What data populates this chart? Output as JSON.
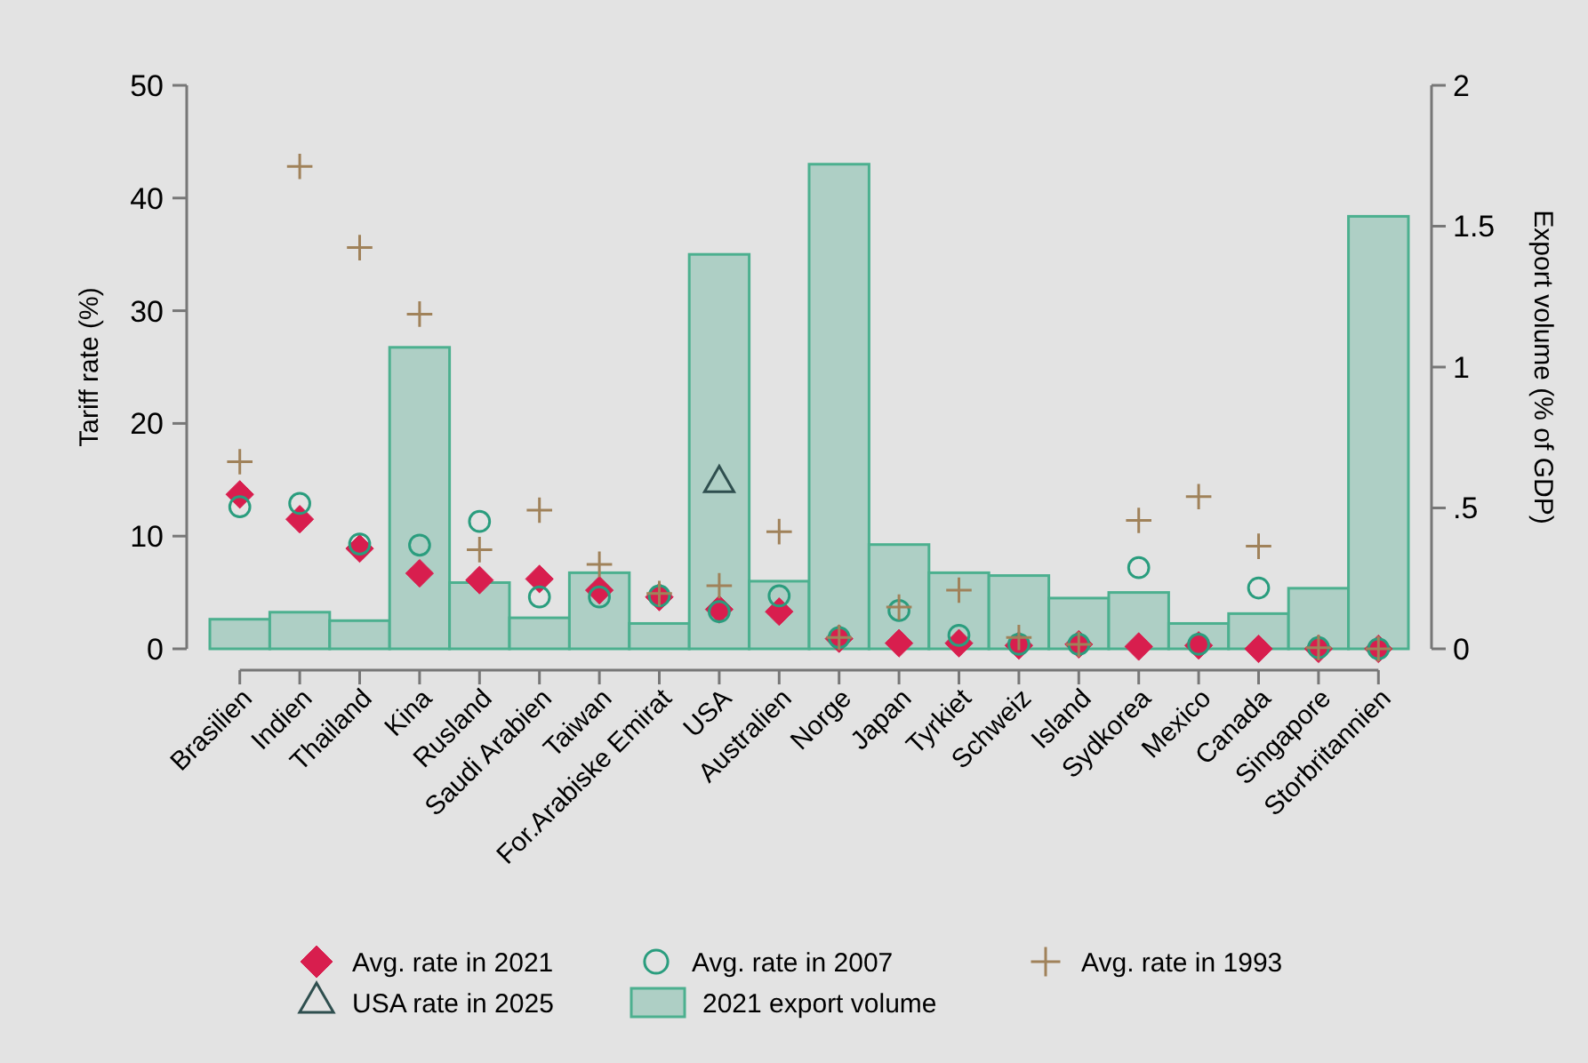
{
  "chart_data": {
    "type": "scatter",
    "categories": [
      "Brasilien",
      "Indien",
      "Thailand",
      "Kina",
      "Rusland",
      "Saudi Arabien",
      "Taiwan",
      "For.Arabiske Emirat",
      "USA",
      "Australien",
      "Norge",
      "Japan",
      "Tyrkiet",
      "Schweiz",
      "Island",
      "Sydkorea",
      "Mexico",
      "Canada",
      "Singapore",
      "Storbritannien"
    ],
    "ylabel": "Tariff rate (%)",
    "y2label": "Export volume (% of GDP)",
    "ylim": [
      0,
      50
    ],
    "yticks": [
      0,
      10,
      20,
      30,
      40,
      50
    ],
    "y2lim": [
      0,
      2
    ],
    "y2ticks": [
      0,
      {
        "value": 0.5,
        "label": ".5"
      },
      1,
      1.5,
      2
    ],
    "grid": false,
    "legend": "bottom",
    "series": [
      {
        "name": "Avg. rate in 2021",
        "marker": "diamond",
        "color": "#d81e4e",
        "values": [
          13.7,
          11.5,
          8.9,
          6.7,
          6.1,
          6.2,
          5.2,
          4.6,
          3.5,
          3.3,
          0.9,
          0.5,
          0.5,
          0.3,
          0.4,
          0.2,
          0.3,
          0,
          0,
          0
        ]
      },
      {
        "name": "Avg. rate in 2007",
        "marker": "circle",
        "color": "#2a9d7e",
        "values": [
          12.6,
          12.9,
          9.3,
          9.2,
          11.3,
          4.6,
          4.6,
          4.7,
          3.3,
          4.7,
          1.0,
          3.4,
          1.2,
          0.4,
          0.4,
          7.2,
          0.4,
          5.4,
          0.1,
          0
        ]
      },
      {
        "name": "Avg. rate in 1993",
        "marker": "cross",
        "color": "#a0825a",
        "values": [
          16.6,
          42.8,
          35.6,
          29.7,
          8.8,
          12.3,
          7.5,
          4.9,
          5.6,
          10.4,
          1.0,
          3.7,
          5.2,
          1.0,
          0.4,
          11.4,
          13.5,
          9.1,
          0.1,
          0
        ]
      },
      {
        "name": "USA rate in 2025",
        "marker": "triangle",
        "color": "#2f4f4f",
        "values": [
          null,
          null,
          null,
          null,
          null,
          null,
          null,
          null,
          14.7,
          null,
          null,
          null,
          null,
          null,
          null,
          null,
          null,
          null,
          null,
          null
        ]
      },
      {
        "name": "2021 export volume",
        "type": "bar",
        "axis": "y2",
        "color": "#aecfc5",
        "values": [
          0.105,
          0.13,
          0.1,
          1.07,
          0.235,
          0.11,
          0.27,
          0.09,
          1.4,
          0.24,
          1.72,
          0.37,
          0.27,
          0.26,
          0.18,
          0.2,
          0.09,
          0.125,
          0.215,
          1.535
        ]
      }
    ]
  }
}
